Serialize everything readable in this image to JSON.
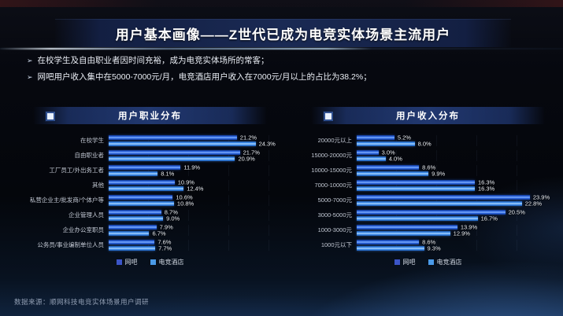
{
  "slide": {
    "title": "用户基本画像——Z世代已成为电竞实体场景主流用户",
    "bullets": [
      "在校学生及自由职业者因时间充裕，成为电竞实体场所的常客；",
      "网吧用户收入集中在5000-7000元/月，电竞酒店用户收入在7000元/月以上的占比为38.2%；"
    ],
    "source": "数据来源：顺网科技电竞实体场景用户调研",
    "bullet_marker": "➢"
  },
  "legend": {
    "items": [
      {
        "label": "网吧",
        "color": "#3b55c8"
      },
      {
        "label": "电竞酒店",
        "color": "#4a9ae8"
      }
    ]
  },
  "colors": {
    "background": "#05080f",
    "banner": "#1a2a54",
    "bar_wangba": "#2a62dd",
    "bar_esports_hotel": "#3e8ceb",
    "streak": "#cfe6ff",
    "value_label": "#eaeef4",
    "category_label": "#c2c8d3"
  },
  "chart_data": [
    {
      "type": "bar",
      "orientation": "horizontal",
      "title": "用户职业分布",
      "categories": [
        "在校学生",
        "自由职业者",
        "工厂员工/外出务工者",
        "其他",
        "私营企业主/批发商/个体户等",
        "企业管理人员",
        "企业办公室职员",
        "公务员/事业编制单位人员"
      ],
      "series": [
        {
          "name": "网吧",
          "values": [
            21.2,
            21.7,
            11.9,
            10.9,
            10.6,
            8.7,
            7.9,
            7.6
          ]
        },
        {
          "name": "电竞酒店",
          "values": [
            24.3,
            20.9,
            8.1,
            12.4,
            10.8,
            9.0,
            6.7,
            7.7
          ]
        }
      ],
      "value_suffix": "%",
      "xlim": [
        0,
        28
      ],
      "grid": true,
      "legend_position": "bottom"
    },
    {
      "type": "bar",
      "orientation": "horizontal",
      "title": "用户收入分布",
      "categories": [
        "20000元以上",
        "15000-20000元",
        "10000-15000元",
        "7000-10000元",
        "5000-7000元",
        "3000-5000元",
        "1000-3000元",
        "1000元以下"
      ],
      "series": [
        {
          "name": "网吧",
          "values": [
            5.2,
            3.0,
            8.6,
            16.3,
            23.9,
            20.5,
            13.9,
            8.6
          ]
        },
        {
          "name": "电竞酒店",
          "values": [
            8.0,
            4.0,
            9.9,
            16.3,
            22.8,
            16.7,
            12.9,
            9.3
          ]
        }
      ],
      "value_suffix": "%",
      "xlim": [
        0,
        27.5
      ],
      "grid": true,
      "legend_position": "bottom"
    }
  ]
}
